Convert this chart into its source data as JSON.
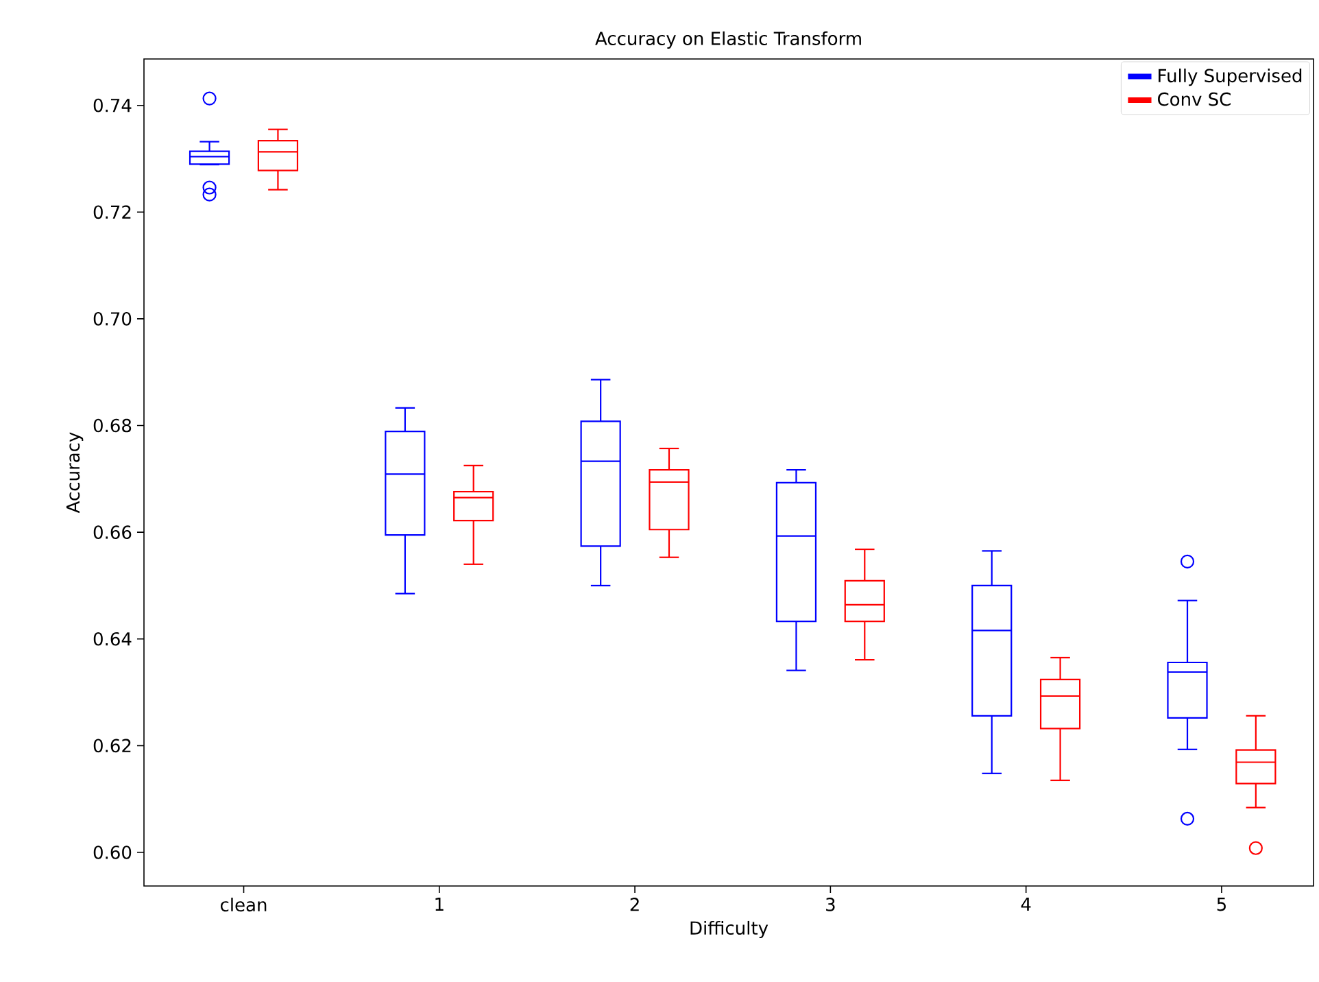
{
  "chart_data": {
    "type": "box",
    "title": "Accuracy on Elastic Transform",
    "xlabel": "Difficulty",
    "ylabel": "Accuracy",
    "categories": [
      "clean",
      "1",
      "2",
      "3",
      "4",
      "5"
    ],
    "series": [
      {
        "name": "Fully Supervised",
        "color": "#0000ff",
        "boxes": [
          {
            "low": 0.7289,
            "q1": 0.729,
            "median": 0.7304,
            "q3": 0.7314,
            "high": 0.7332,
            "outliers": [
              0.7413,
              0.7246,
              0.7233
            ]
          },
          {
            "low": 0.6485,
            "q1": 0.6595,
            "median": 0.6709,
            "q3": 0.6789,
            "high": 0.6833
          },
          {
            "low": 0.65,
            "q1": 0.6574,
            "median": 0.6733,
            "q3": 0.6808,
            "high": 0.6886
          },
          {
            "low": 0.6341,
            "q1": 0.6433,
            "median": 0.6593,
            "q3": 0.6693,
            "high": 0.6717
          },
          {
            "low": 0.6148,
            "q1": 0.6256,
            "median": 0.6416,
            "q3": 0.65,
            "high": 0.6565
          },
          {
            "low": 0.6193,
            "q1": 0.6252,
            "median": 0.6338,
            "q3": 0.6356,
            "high": 0.6472,
            "outliers": [
              0.6545,
              0.6063
            ]
          }
        ]
      },
      {
        "name": "Conv SC",
        "color": "#ff0000",
        "boxes": [
          {
            "low": 0.7242,
            "q1": 0.7278,
            "median": 0.7313,
            "q3": 0.7334,
            "high": 0.7355
          },
          {
            "low": 0.654,
            "q1": 0.6622,
            "median": 0.6665,
            "q3": 0.6676,
            "high": 0.6725
          },
          {
            "low": 0.6553,
            "q1": 0.6605,
            "median": 0.6694,
            "q3": 0.6717,
            "high": 0.6757
          },
          {
            "low": 0.6361,
            "q1": 0.6433,
            "median": 0.6464,
            "q3": 0.6509,
            "high": 0.6568
          },
          {
            "low": 0.6135,
            "q1": 0.6232,
            "median": 0.6293,
            "q3": 0.6324,
            "high": 0.6365
          },
          {
            "low": 0.6084,
            "q1": 0.6129,
            "median": 0.6169,
            "q3": 0.6192,
            "high": 0.6256,
            "outliers": [
              0.6008
            ]
          }
        ]
      }
    ],
    "ylim": [
      0.5937,
      0.7487
    ],
    "yticks": [
      {
        "value": 0.6,
        "label": "0.60"
      },
      0.62,
      0.64,
      0.66,
      0.68,
      {
        "value": 0.7,
        "label": "0.70"
      },
      0.72,
      0.74
    ],
    "legend": "top right",
    "marker": "circle"
  }
}
